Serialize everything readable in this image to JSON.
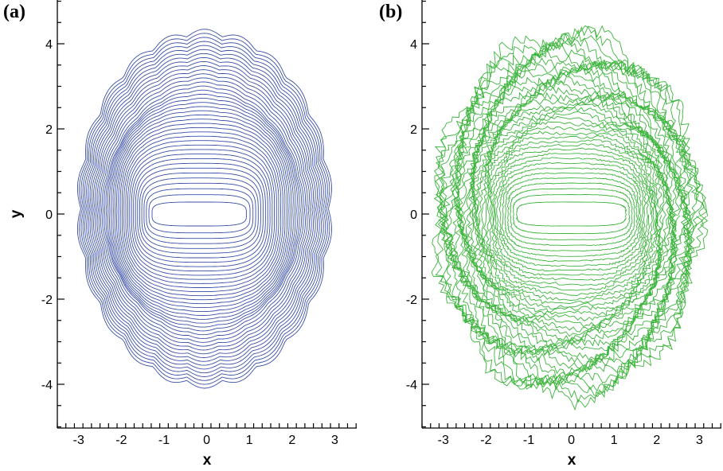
{
  "chart_data": [
    {
      "type": "line",
      "panel_label": "(a)",
      "xlabel": "x",
      "ylabel": "y",
      "xlim": [
        -3.5,
        3.5
      ],
      "ylim": [
        -5,
        5
      ],
      "xticks": [
        "-3",
        "-2",
        "-1",
        "0",
        "1",
        "2",
        "3"
      ],
      "yticks": [
        "-4",
        "-2",
        "0",
        "2",
        "4"
      ],
      "grid": false,
      "color": "#3a4fa8",
      "contour_levels": 40,
      "inner_slot": {
        "x_range": [
          -1.0,
          0.65
        ],
        "half_height": 0.28
      },
      "outer_extent": {
        "x": [
          -2.95,
          2.85
        ],
        "y": [
          -3.95,
          4.2
        ]
      }
    },
    {
      "type": "line",
      "panel_label": "(b)",
      "xlabel": "x",
      "ylabel": "",
      "xlim": [
        -3.5,
        3.5
      ],
      "ylim": [
        -5,
        5
      ],
      "xticks": [
        "-3",
        "-2",
        "-1",
        "0",
        "1",
        "2",
        "3"
      ],
      "yticks": [
        "-4",
        "-2",
        "0",
        "2",
        "4"
      ],
      "grid": false,
      "color": "#3cb43c",
      "contour_levels": 40,
      "inner_slot": {
        "x_range": [
          -1.0,
          1.0
        ],
        "half_height": 0.28
      },
      "outer_extent": {
        "x": [
          -3.15,
          3.0
        ],
        "y": [
          -4.3,
          4.2
        ]
      }
    }
  ]
}
